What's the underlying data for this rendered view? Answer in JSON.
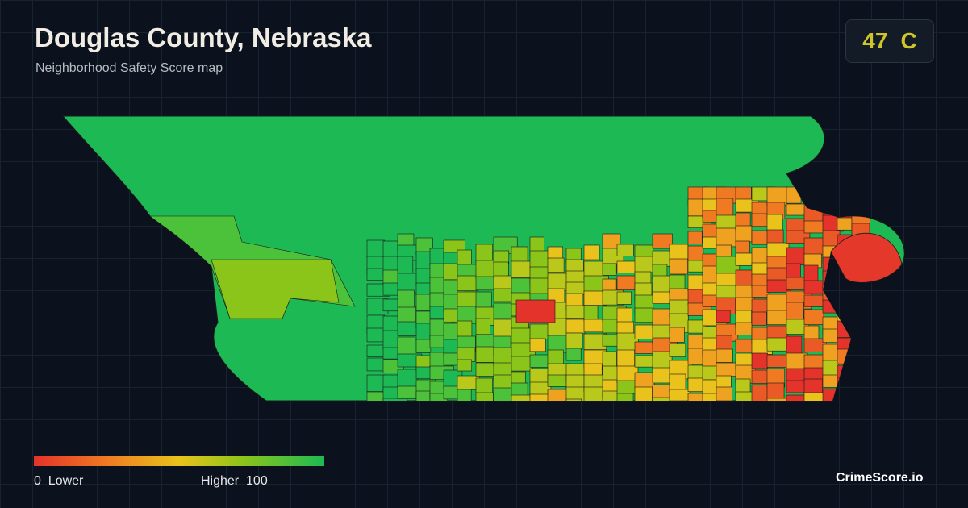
{
  "header": {
    "title": "Douglas County, Nebraska",
    "subtitle": "Neighborhood Safety Score map"
  },
  "score": {
    "value": 47,
    "grade": "C"
  },
  "legend": {
    "min": 0,
    "min_label": "Lower",
    "max_label": "Higher",
    "max": 100
  },
  "brand": "CrimeScore.io"
}
